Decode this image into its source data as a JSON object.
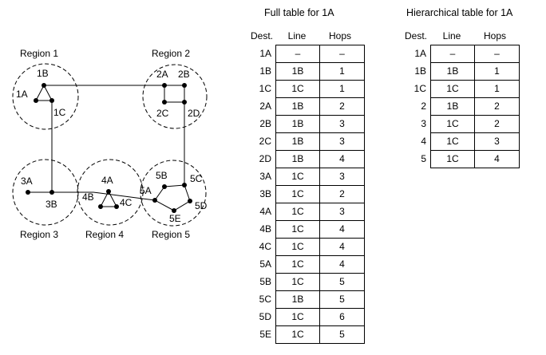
{
  "diagram": {
    "regions": [
      {
        "name": "Region 1",
        "routers": [
          "1A",
          "1B",
          "1C"
        ]
      },
      {
        "name": "Region 2",
        "routers": [
          "2A",
          "2B",
          "2C",
          "2D"
        ]
      },
      {
        "name": "Region 3",
        "routers": [
          "3A",
          "3B"
        ]
      },
      {
        "name": "Region 4",
        "routers": [
          "4A",
          "4B",
          "4C"
        ]
      },
      {
        "name": "Region 5",
        "routers": [
          "5A",
          "5B",
          "5C",
          "5D",
          "5E"
        ]
      }
    ]
  },
  "full_table": {
    "title": "Full table for 1A",
    "headers": [
      "Dest.",
      "Line",
      "Hops"
    ],
    "rows": [
      [
        "1A",
        "–",
        "–"
      ],
      [
        "1B",
        "1B",
        "1"
      ],
      [
        "1C",
        "1C",
        "1"
      ],
      [
        "2A",
        "1B",
        "2"
      ],
      [
        "2B",
        "1B",
        "3"
      ],
      [
        "2C",
        "1B",
        "3"
      ],
      [
        "2D",
        "1B",
        "4"
      ],
      [
        "3A",
        "1C",
        "3"
      ],
      [
        "3B",
        "1C",
        "2"
      ],
      [
        "4A",
        "1C",
        "3"
      ],
      [
        "4B",
        "1C",
        "4"
      ],
      [
        "4C",
        "1C",
        "4"
      ],
      [
        "5A",
        "1C",
        "4"
      ],
      [
        "5B",
        "1C",
        "5"
      ],
      [
        "5C",
        "1B",
        "5"
      ],
      [
        "5D",
        "1C",
        "6"
      ],
      [
        "5E",
        "1C",
        "5"
      ]
    ]
  },
  "hier_table": {
    "title": "Hierarchical table for 1A",
    "headers": [
      "Dest.",
      "Line",
      "Hops"
    ],
    "rows": [
      [
        "1A",
        "–",
        "–"
      ],
      [
        "1B",
        "1B",
        "1"
      ],
      [
        "1C",
        "1C",
        "1"
      ],
      [
        "2",
        "1B",
        "2"
      ],
      [
        "3",
        "1C",
        "2"
      ],
      [
        "4",
        "1C",
        "3"
      ],
      [
        "5",
        "1C",
        "4"
      ]
    ]
  }
}
